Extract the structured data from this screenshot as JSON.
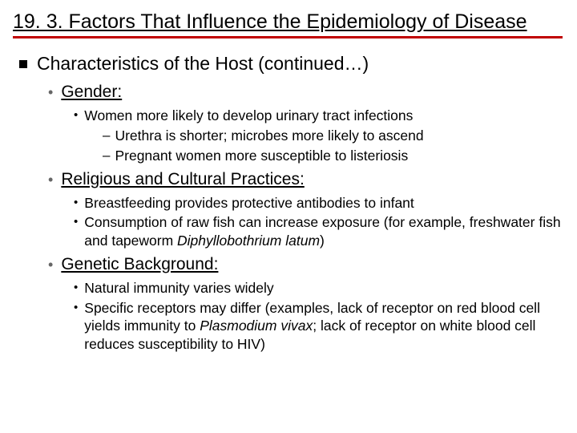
{
  "colors": {
    "accent_rule": "#c00000",
    "text": "#000000",
    "bg": "#ffffff",
    "bullet_l2": "#666666"
  },
  "typography": {
    "title_fontsize": 25,
    "l1_fontsize": 23,
    "l2_fontsize": 21,
    "l3_fontsize": 17.5,
    "l4_fontsize": 17.5,
    "font_family": "Arial"
  },
  "title": "19. 3. Factors That Influence the Epidemiology of Disease",
  "l1_heading": "Characteristics of the Host (continued…)",
  "sections": {
    "gender": {
      "label": "Gender:",
      "items": {
        "a": "Women more likely to develop urinary tract infections",
        "a_sub1": "Urethra is shorter; microbes more likely to ascend",
        "a_sub2": "Pregnant women more susceptible to listeriosis"
      }
    },
    "religious": {
      "label": "Religious and Cultural Practices:",
      "items": {
        "a": "Breastfeeding provides protective antibodies to infant",
        "b_pre": "Consumption of raw fish can increase exposure (for example, freshwater fish and tapeworm ",
        "b_italic": "Diphyllobothrium latum",
        "b_post": ")"
      }
    },
    "genetic": {
      "label": "Genetic Background:",
      "items": {
        "a": "Natural immunity varies widely",
        "b_pre": "Specific receptors may differ (examples, lack of receptor on red blood cell yields immunity to ",
        "b_italic": "Plasmodium vivax",
        "b_post": "; lack of receptor on white blood cell reduces susceptibility to HIV)"
      }
    }
  }
}
